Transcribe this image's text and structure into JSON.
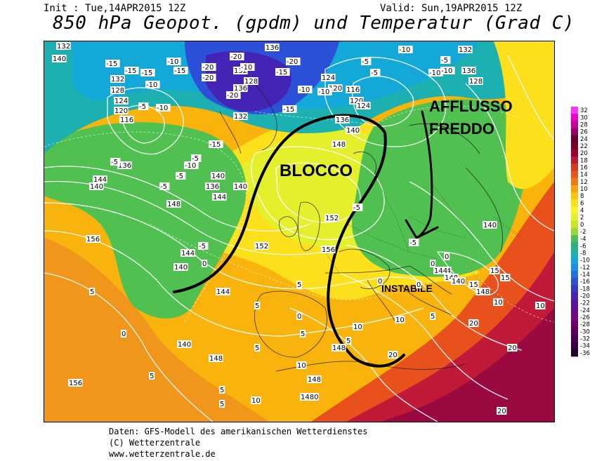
{
  "header": {
    "init": "Init : Tue,14APR2015 12Z",
    "valid": "Valid: Sun,19APR2015 12Z",
    "title": "850 hPa Geopot. (gpdm) und Temperatur (Grad C)"
  },
  "annotations": {
    "blocco": "BLOCCO",
    "afflusso": "AFFLUSSO",
    "freddo": "FREDDO",
    "instabile": "INSTABILE"
  },
  "colorbar": {
    "labels": [
      "32",
      "30",
      "28",
      "26",
      "24",
      "22",
      "20",
      "18",
      "16",
      "14",
      "12",
      "10",
      "8",
      "6",
      "4",
      "2",
      "0",
      "-2",
      "-4",
      "-6",
      "-8",
      "-10",
      "-12",
      "-14",
      "-16",
      "-18",
      "-20",
      "-22",
      "-24",
      "-26",
      "-28",
      "-30",
      "-32",
      "-34",
      "-36"
    ],
    "colors": [
      "#ff33ff",
      "#ee00cc",
      "#cc0099",
      "#990066",
      "#660033",
      "#7a0026",
      "#a0002a",
      "#c01830",
      "#d83a20",
      "#e8561c",
      "#f07a14",
      "#f8a00e",
      "#fcc40a",
      "#fde01c",
      "#f8f428",
      "#e4f02c",
      "#c8e624",
      "#9cd83c",
      "#50c050",
      "#2cb07c",
      "#1cb0b0",
      "#14a8d8",
      "#1890ec",
      "#2070e8",
      "#2c50d8",
      "#3838c8",
      "#4424b4",
      "#5414a4",
      "#680c94",
      "#7a0484",
      "#6c0070",
      "#5a0060",
      "#480050",
      "#360040",
      "#24002c"
    ]
  },
  "height_labels": [
    "132",
    "140",
    "132",
    "128",
    "124",
    "120",
    "116",
    "136",
    "124",
    "120",
    "132",
    "128",
    "136",
    "132",
    "116",
    "120",
    "124",
    "136",
    "140",
    "132",
    "136",
    "128",
    "136",
    "140",
    "148",
    "156",
    "152",
    "156",
    "152",
    "144",
    "140",
    "144",
    "148",
    "156",
    "140",
    "144",
    "148",
    "140",
    "148",
    "148",
    "1480",
    "140",
    "148",
    "144",
    "144",
    "140",
    "148",
    "136",
    "144",
    "140"
  ],
  "temp_labels": [
    "-15",
    "-15",
    "-10",
    "-15",
    "-10",
    "-15",
    "-20",
    "-20",
    "-20",
    "-20",
    "-15",
    "-20",
    "-10",
    "-15",
    "-10",
    "-5",
    "-10",
    "-10",
    "-5",
    "-10",
    "-5",
    "-5",
    "-10",
    "-15",
    "-10",
    "-5",
    "-5",
    "-5",
    "-10",
    "-5",
    "-5",
    "0",
    "-5",
    "0",
    "5",
    "0",
    "0",
    "-5",
    "0",
    "5",
    "0",
    "5",
    "5",
    "5",
    "10",
    "10",
    "5",
    "10",
    "15",
    "15",
    "10",
    "20",
    "20",
    "20",
    "15",
    "10",
    "5",
    "5",
    "5",
    "5",
    "0",
    "20",
    "10"
  ],
  "footer": {
    "line1": "Daten: GFS-Modell des amerikanischen Wetterdienstes",
    "line2": "(C) Wetterzentrale",
    "line3": "www.wetterzentrale.de"
  }
}
